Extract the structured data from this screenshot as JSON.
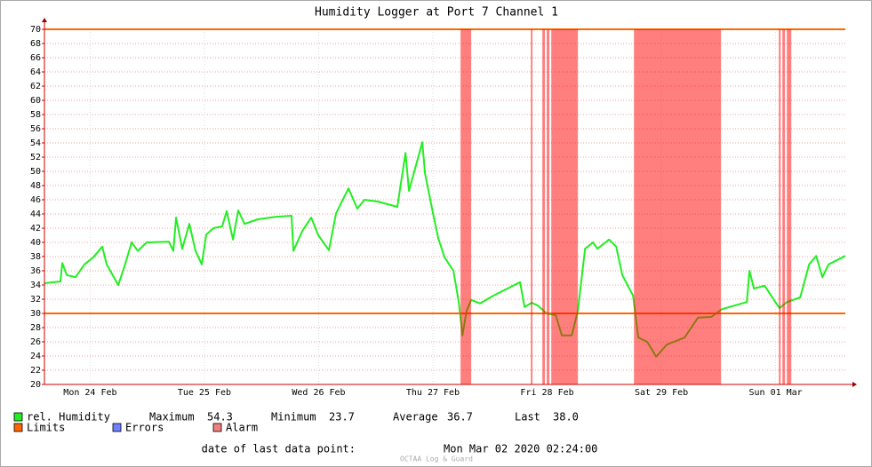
{
  "chart_data": {
    "type": "line",
    "title": "Humidity Logger at Port 7 Channel 1",
    "xlim": [
      0,
      7.01
    ],
    "xticks": [
      {
        "value": 0.4,
        "label": "Mon 24 Feb"
      },
      {
        "value": 1.4,
        "label": "Tue 25 Feb"
      },
      {
        "value": 2.4,
        "label": "Wed 26 Feb"
      },
      {
        "value": 3.4,
        "label": "Thu 27 Feb"
      },
      {
        "value": 4.4,
        "label": "Fri 28 Feb"
      },
      {
        "value": 5.4,
        "label": "Sat 29 Feb"
      },
      {
        "value": 6.4,
        "label": "Sun 01 Mar"
      }
    ],
    "ylim": [
      20,
      70
    ],
    "yticks": [
      20,
      22,
      24,
      26,
      28,
      30,
      32,
      34,
      36,
      38,
      40,
      42,
      44,
      46,
      48,
      50,
      52,
      54,
      56,
      58,
      60,
      62,
      64,
      66,
      68,
      70
    ],
    "grid": true,
    "x": [
      0,
      0.14,
      0.156,
      0.195,
      0.272,
      0.35,
      0.428,
      0.506,
      0.545,
      0.646,
      0.7,
      0.763,
      0.817,
      0.895,
      1.089,
      1.128,
      1.152,
      1.206,
      1.268,
      1.323,
      1.377,
      1.416,
      1.479,
      1.556,
      1.595,
      1.65,
      1.696,
      1.751,
      1.868,
      2.023,
      2.163,
      2.179,
      2.257,
      2.335,
      2.397,
      2.49,
      2.553,
      2.661,
      2.739,
      2.802,
      2.918,
      3.089,
      3.16,
      3.191,
      3.307,
      3.331,
      3.401,
      3.447,
      3.502,
      3.58,
      3.626,
      3.658,
      3.696,
      3.735,
      3.813,
      3.93,
      4.163,
      4.202,
      4.265,
      4.319,
      4.397,
      4.475,
      4.529,
      4.615,
      4.669,
      4.732,
      4.802,
      4.84,
      4.942,
      5.004,
      5.058,
      5.152,
      5.198,
      5.276,
      5.354,
      5.447,
      5.603,
      5.72,
      5.837,
      5.93,
      6.148,
      6.171,
      6.21,
      6.304,
      6.397,
      6.436,
      6.498,
      6.615,
      6.693,
      6.755,
      6.809,
      6.864,
      7.01
    ],
    "series": [
      {
        "name": "rel. Humidity",
        "color": "#22ee22",
        "values": [
          34.25,
          34.5,
          37.1,
          35.4,
          35.1,
          36.9,
          37.9,
          39.4,
          36.9,
          34,
          36.6,
          40,
          38.8,
          40,
          40.1,
          38.8,
          43.5,
          39.1,
          42.6,
          38.8,
          36.9,
          41.1,
          42,
          42.25,
          44.4,
          40.4,
          44.5,
          42.6,
          43.25,
          43.6,
          43.75,
          38.8,
          41.6,
          43.5,
          41,
          38.9,
          44.1,
          47.6,
          44.75,
          46,
          45.75,
          45,
          52.6,
          47.25,
          54.1,
          49.75,
          44.1,
          40.6,
          37.9,
          36,
          31.6,
          26.9,
          30.4,
          31.9,
          31.4,
          32.5,
          34.4,
          30.9,
          31.5,
          31.1,
          30,
          29.75,
          26.9,
          26.9,
          30.4,
          39.1,
          40,
          39.1,
          40.4,
          39.4,
          35.4,
          32.5,
          26.6,
          26,
          23.9,
          25.6,
          26.6,
          29.4,
          29.5,
          30.6,
          31.6,
          36,
          33.5,
          33.9,
          31.6,
          30.75,
          31.6,
          32.25,
          36.9,
          38.1,
          35.1,
          36.9,
          38.1
        ]
      }
    ],
    "limits": {
      "name": "Limits",
      "color": "#ff6600",
      "values": [
        30,
        70
      ]
    },
    "errors": {
      "name": "Errors",
      "color": "#7080ff"
    },
    "alarm": {
      "name": "Alarm",
      "color": "#ff0000",
      "spans": [
        [
          3.642,
          3.735
        ],
        [
          4.257,
          4.272
        ],
        [
          4.358,
          4.381
        ],
        [
          4.397,
          4.42
        ],
        [
          4.436,
          4.669
        ],
        [
          5.16,
          5.922
        ],
        [
          6.428,
          6.444
        ],
        [
          6.459,
          6.482
        ],
        [
          6.498,
          6.537
        ]
      ]
    },
    "stats": [
      {
        "label": "Maximum",
        "value": "54.3"
      },
      {
        "label": "Minimum",
        "value": "23.7"
      },
      {
        "label": "Average",
        "value": "36.7"
      },
      {
        "label": "Last",
        "value": "38.0"
      }
    ],
    "footer": {
      "label": "date of last data point:",
      "value": "Mon Mar 02 2020 02:24:00"
    },
    "watermark": "OCTAA Log & Guard"
  }
}
